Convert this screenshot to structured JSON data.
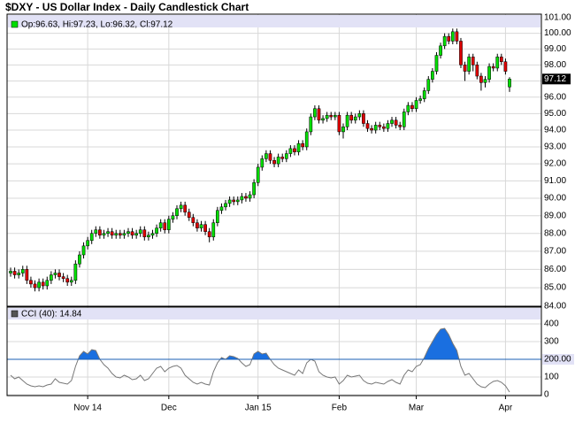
{
  "chart_data": [
    {
      "type": "candlestick",
      "title": "$DXY - US Dollar Index - Daily Candlestick Chart",
      "legend_text": "Op:96.63, Hi:97.23, Lo:96.32, Cl:97.12",
      "up_color": "#00dd00",
      "down_color": "#dd0000",
      "log_scale": true,
      "grid": true,
      "ylim": [
        84,
        101
      ],
      "yticks": [
        {
          "value": 84,
          "label": "84.00"
        },
        {
          "value": 85,
          "label": "85.00"
        },
        {
          "value": 86,
          "label": "86.00"
        },
        {
          "value": 87,
          "label": "87.00"
        },
        {
          "value": 88,
          "label": "88.00"
        },
        {
          "value": 89,
          "label": "89.00"
        },
        {
          "value": 90,
          "label": "90.00"
        },
        {
          "value": 91,
          "label": "91.00"
        },
        {
          "value": 92,
          "label": "92.00"
        },
        {
          "value": 93,
          "label": "93.00"
        },
        {
          "value": 94,
          "label": "94.00"
        },
        {
          "value": 95,
          "label": "95.00"
        },
        {
          "value": 96,
          "label": "96.00"
        },
        {
          "value": 97,
          "label": "97.00"
        },
        {
          "value": 98,
          "label": "98.00"
        },
        {
          "value": 99,
          "label": "99.00"
        },
        {
          "value": 100,
          "label": "100.00"
        },
        {
          "value": 101,
          "label": "101.00"
        }
      ],
      "open": [
        85.8,
        85.9,
        85.7,
        85.8,
        86.0,
        85.4,
        85.2,
        85.0,
        85.3,
        85.1,
        85.4,
        85.7,
        85.8,
        85.6,
        85.5,
        85.3,
        85.4,
        86.3,
        86.8,
        87.3,
        87.6,
        88.0,
        88.2,
        87.9,
        88.0,
        88.1,
        87.9,
        88.0,
        87.9,
        88.0,
        88.1,
        87.9,
        88.0,
        88.2,
        87.8,
        87.9,
        88.0,
        88.3,
        88.6,
        88.2,
        88.8,
        89.0,
        89.4,
        89.6,
        89.2,
        88.9,
        88.6,
        88.3,
        88.5,
        88.1,
        87.8,
        88.6,
        89.3,
        89.5,
        89.7,
        89.9,
        89.8,
        89.9,
        90.1,
        90.0,
        90.2,
        90.9,
        91.8,
        92.3,
        92.6,
        92.2,
        92.0,
        92.4,
        92.3,
        92.6,
        92.9,
        92.7,
        93.2,
        93.0,
        93.9,
        94.8,
        95.3,
        94.6,
        94.7,
        94.9,
        94.8,
        94.9,
        93.9,
        94.2,
        94.9,
        94.6,
        94.8,
        95.0,
        94.4,
        94.1,
        94.0,
        94.3,
        94.2,
        94.1,
        94.4,
        94.6,
        94.3,
        94.2,
        95.1,
        95.5,
        95.3,
        95.8,
        95.9,
        96.4,
        97.1,
        97.6,
        98.6,
        99.2,
        99.8,
        99.5,
        100.1,
        99.5,
        98.0,
        97.6,
        98.5,
        98.0,
        97.3,
        96.9,
        97.1,
        97.9,
        97.8,
        98.5,
        98.2,
        96.63
      ],
      "high": [
        86.1,
        86.1,
        86.0,
        86.2,
        86.2,
        85.6,
        85.4,
        85.5,
        85.5,
        85.6,
        85.9,
        86.0,
        86.0,
        85.8,
        85.7,
        85.6,
        86.5,
        87.0,
        87.5,
        87.8,
        88.2,
        88.4,
        88.4,
        88.2,
        88.3,
        88.3,
        88.2,
        88.2,
        88.2,
        88.3,
        88.3,
        88.2,
        88.4,
        88.4,
        88.1,
        88.2,
        88.5,
        88.8,
        88.8,
        89.0,
        89.2,
        89.6,
        89.8,
        89.8,
        89.4,
        89.1,
        88.8,
        88.7,
        88.7,
        88.3,
        88.8,
        89.5,
        89.7,
        89.9,
        90.1,
        90.1,
        90.1,
        90.3,
        90.3,
        90.4,
        91.1,
        92.0,
        92.5,
        92.8,
        92.8,
        92.4,
        92.6,
        92.6,
        92.8,
        93.1,
        93.1,
        93.4,
        93.4,
        94.1,
        95.0,
        95.5,
        95.5,
        94.9,
        95.1,
        95.1,
        95.1,
        95.1,
        94.4,
        95.1,
        95.1,
        95.0,
        95.2,
        95.2,
        94.6,
        94.3,
        94.5,
        94.5,
        94.4,
        94.6,
        94.8,
        94.8,
        94.5,
        95.3,
        95.7,
        95.7,
        96.0,
        96.1,
        96.6,
        97.3,
        97.8,
        98.8,
        99.4,
        100.0,
        100.0,
        100.3,
        100.3,
        99.7,
        98.2,
        98.7,
        98.7,
        98.2,
        97.5,
        97.3,
        98.1,
        98.1,
        98.7,
        98.7,
        98.4,
        97.23
      ],
      "low": [
        85.6,
        85.5,
        85.5,
        85.6,
        85.2,
        85.0,
        84.8,
        84.8,
        84.9,
        84.9,
        85.2,
        85.5,
        85.4,
        85.3,
        85.1,
        85.1,
        85.2,
        86.1,
        86.6,
        87.1,
        87.4,
        87.8,
        87.7,
        87.7,
        87.8,
        87.7,
        87.7,
        87.7,
        87.7,
        87.8,
        87.7,
        87.7,
        87.8,
        87.6,
        87.6,
        87.7,
        87.8,
        88.1,
        88.0,
        88.0,
        88.6,
        88.8,
        89.2,
        89.0,
        88.7,
        88.4,
        88.1,
        88.1,
        87.9,
        87.5,
        87.6,
        88.4,
        89.1,
        89.3,
        89.5,
        89.6,
        89.6,
        89.7,
        89.8,
        89.8,
        90.0,
        90.7,
        91.6,
        92.1,
        92.0,
        91.8,
        91.8,
        92.1,
        92.1,
        92.4,
        92.5,
        92.5,
        92.8,
        92.8,
        93.7,
        94.6,
        94.4,
        94.4,
        94.5,
        94.6,
        94.6,
        93.7,
        93.5,
        94.0,
        94.4,
        94.4,
        94.6,
        94.2,
        93.9,
        93.8,
        93.8,
        94.0,
        93.9,
        93.9,
        94.2,
        94.1,
        94.0,
        94.0,
        94.9,
        95.1,
        95.1,
        95.6,
        95.7,
        96.2,
        96.9,
        97.4,
        98.4,
        99.0,
        99.3,
        99.3,
        99.3,
        97.8,
        97.0,
        97.4,
        97.6,
        97.1,
        96.4,
        96.6,
        96.9,
        97.6,
        97.6,
        98.0,
        97.4,
        96.32
      ],
      "close": [
        85.9,
        85.7,
        85.8,
        86.0,
        85.4,
        85.2,
        85.0,
        85.3,
        85.1,
        85.4,
        85.7,
        85.8,
        85.6,
        85.5,
        85.3,
        85.4,
        86.3,
        86.8,
        87.3,
        87.6,
        88.0,
        88.2,
        87.9,
        88.0,
        88.1,
        87.9,
        88.0,
        87.9,
        88.0,
        88.1,
        87.9,
        88.0,
        88.2,
        87.8,
        87.9,
        88.0,
        88.3,
        88.6,
        88.2,
        88.8,
        89.0,
        89.4,
        89.6,
        89.2,
        88.9,
        88.6,
        88.3,
        88.5,
        88.1,
        87.8,
        88.6,
        89.3,
        89.5,
        89.7,
        89.9,
        89.8,
        89.9,
        90.1,
        90.0,
        90.2,
        90.9,
        91.8,
        92.3,
        92.6,
        92.2,
        92.0,
        92.4,
        92.3,
        92.6,
        92.9,
        92.7,
        93.2,
        93.0,
        93.9,
        94.8,
        95.3,
        94.6,
        94.7,
        94.9,
        94.8,
        94.9,
        93.9,
        94.2,
        94.9,
        94.6,
        94.8,
        95.0,
        94.4,
        94.1,
        94.0,
        94.3,
        94.2,
        94.1,
        94.4,
        94.6,
        94.3,
        94.2,
        95.1,
        95.5,
        95.3,
        95.8,
        95.9,
        96.4,
        97.1,
        97.6,
        98.6,
        99.2,
        99.8,
        99.5,
        100.1,
        99.5,
        98.0,
        97.6,
        98.5,
        98.0,
        97.3,
        96.9,
        97.1,
        97.9,
        97.8,
        98.5,
        98.2,
        97.6,
        97.12
      ]
    },
    {
      "type": "line",
      "legend_text": "CCI (40): 14.84",
      "color": "#777777",
      "fill_color": "#1a6fe0",
      "reference_color": "#1a5fb4",
      "grid": true,
      "ylim": [
        0,
        480
      ],
      "yticks": [
        0,
        100,
        200,
        300,
        400
      ],
      "reference": {
        "value": 200,
        "label": "200.00"
      },
      "xticks": [
        {
          "value": 19,
          "label": "Nov 14"
        },
        {
          "value": 39,
          "label": "Dec"
        },
        {
          "value": 61,
          "label": "Jan 15"
        },
        {
          "value": 81,
          "label": "Feb"
        },
        {
          "value": 100,
          "label": "Mar"
        },
        {
          "value": 122,
          "label": "Apr"
        }
      ],
      "values": [
        110,
        90,
        100,
        80,
        60,
        50,
        45,
        50,
        45,
        55,
        60,
        90,
        70,
        65,
        60,
        80,
        160,
        220,
        245,
        230,
        255,
        250,
        200,
        170,
        150,
        120,
        100,
        95,
        110,
        100,
        85,
        90,
        110,
        80,
        90,
        120,
        150,
        160,
        130,
        150,
        160,
        165,
        150,
        110,
        90,
        70,
        60,
        70,
        60,
        55,
        130,
        180,
        210,
        200,
        220,
        215,
        205,
        180,
        160,
        170,
        230,
        245,
        230,
        235,
        200,
        170,
        150,
        140,
        130,
        120,
        110,
        140,
        120,
        180,
        200,
        190,
        130,
        110,
        100,
        95,
        100,
        60,
        80,
        110,
        100,
        105,
        110,
        80,
        65,
        60,
        70,
        65,
        60,
        75,
        85,
        70,
        60,
        110,
        140,
        130,
        160,
        170,
        210,
        260,
        300,
        340,
        370,
        375,
        340,
        290,
        250,
        160,
        110,
        120,
        90,
        60,
        45,
        40,
        60,
        75,
        80,
        70,
        50,
        14.84
      ]
    }
  ]
}
